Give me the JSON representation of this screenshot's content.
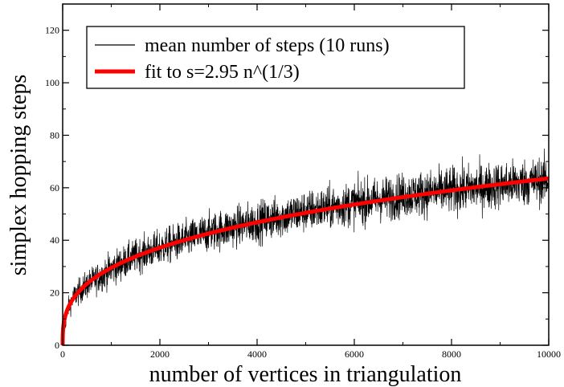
{
  "chart_data": {
    "type": "line",
    "xlabel": "number of vertices in triangulation",
    "ylabel": "simplex hopping steps",
    "xlim": [
      0,
      10000
    ],
    "ylim": [
      0,
      130
    ],
    "x_ticks": [
      0,
      2000,
      4000,
      6000,
      8000,
      10000
    ],
    "y_ticks": [
      0,
      20,
      40,
      60,
      80,
      100,
      120
    ],
    "grid": false,
    "legend_placement": "top-left",
    "series": [
      {
        "name": "mean number of steps (10 runs)",
        "color": "#000000",
        "style": "thin noisy line",
        "x": [
          0,
          100,
          250,
          500,
          1000,
          1500,
          2000,
          3000,
          4000,
          5000,
          6000,
          7000,
          8000,
          9000,
          10000
        ],
        "y": [
          0,
          14,
          19,
          23,
          29,
          34,
          37,
          43,
          47,
          51,
          54,
          57,
          59,
          61,
          63
        ],
        "spread": [
          0,
          7,
          9,
          10,
          12,
          12,
          13,
          14,
          15,
          15,
          16,
          16,
          17,
          17,
          17
        ]
      },
      {
        "name": "fit to s=2.95 n^(1/3)",
        "color": "#ff0000",
        "style": "thick line",
        "formula": "s = 2.95 n^(1/3)",
        "coefficient": 2.95,
        "exponent": 0.3333333
      }
    ]
  }
}
